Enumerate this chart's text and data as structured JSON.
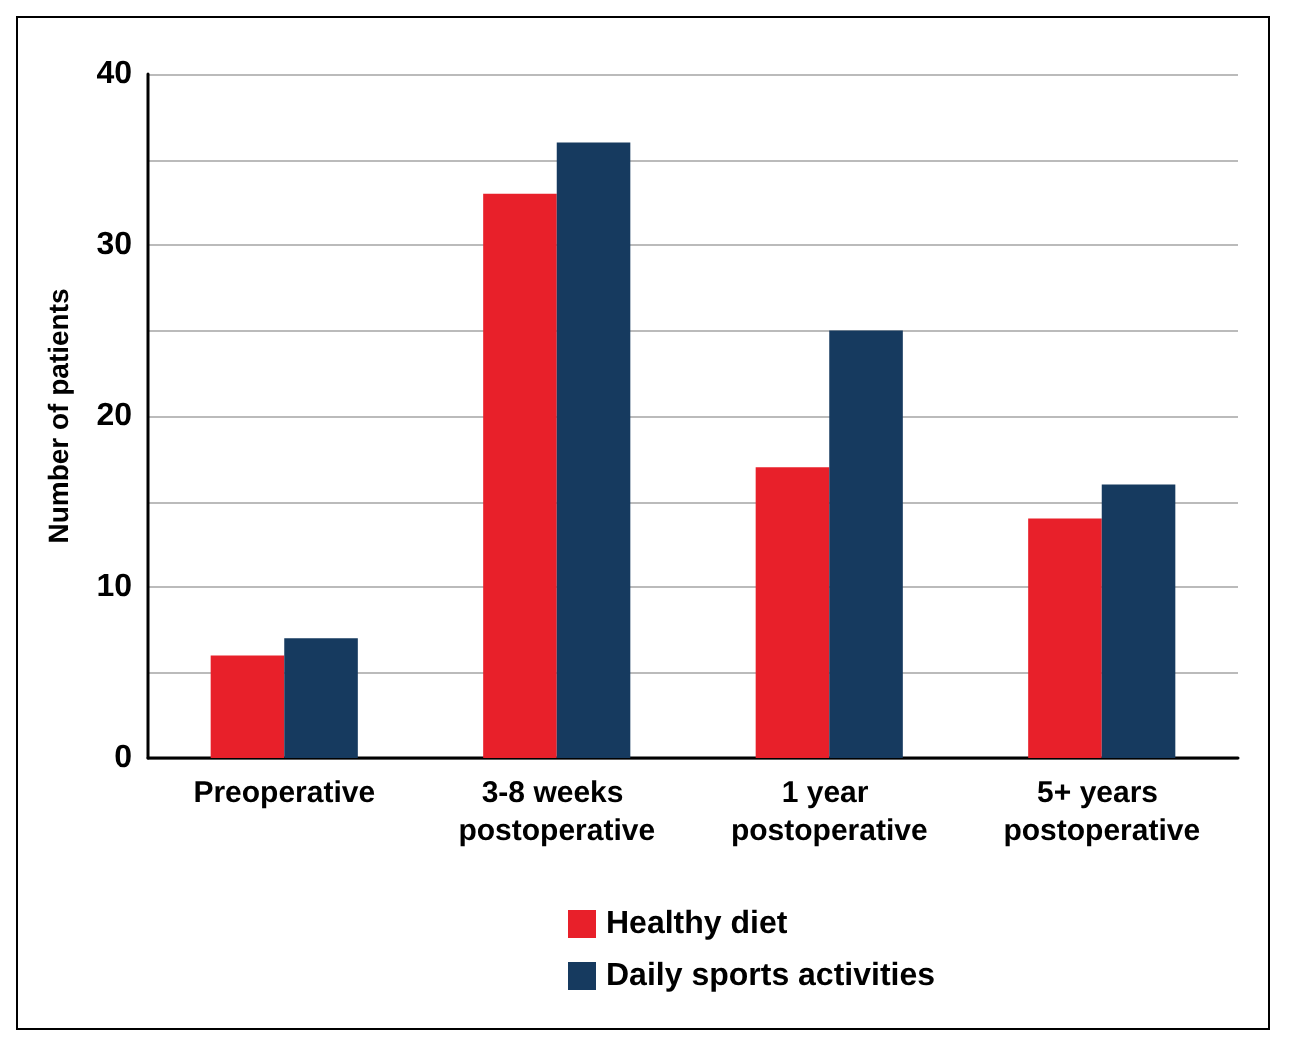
{
  "chart_data": {
    "type": "bar",
    "ylabel": "Number of patients",
    "categories": [
      "Preoperative",
      "3-8 weeks postoperative",
      "1 year postoperative",
      "5+ years postoperative"
    ],
    "series": [
      {
        "name": "Healthy diet",
        "color": "#e8202a",
        "values": [
          6,
          33,
          17,
          14
        ]
      },
      {
        "name": "Daily sports activities",
        "color": "#163a5f",
        "values": [
          7,
          36,
          25,
          16
        ]
      }
    ],
    "ylim": [
      0,
      40
    ],
    "yticks": [
      0,
      {
        "value": 5,
        "label": null
      },
      10,
      {
        "value": 15,
        "label": null
      },
      20,
      {
        "value": 25,
        "label": null
      },
      30,
      {
        "value": 35,
        "label": null
      },
      40
    ],
    "grid": "y",
    "legend": "bottom"
  }
}
